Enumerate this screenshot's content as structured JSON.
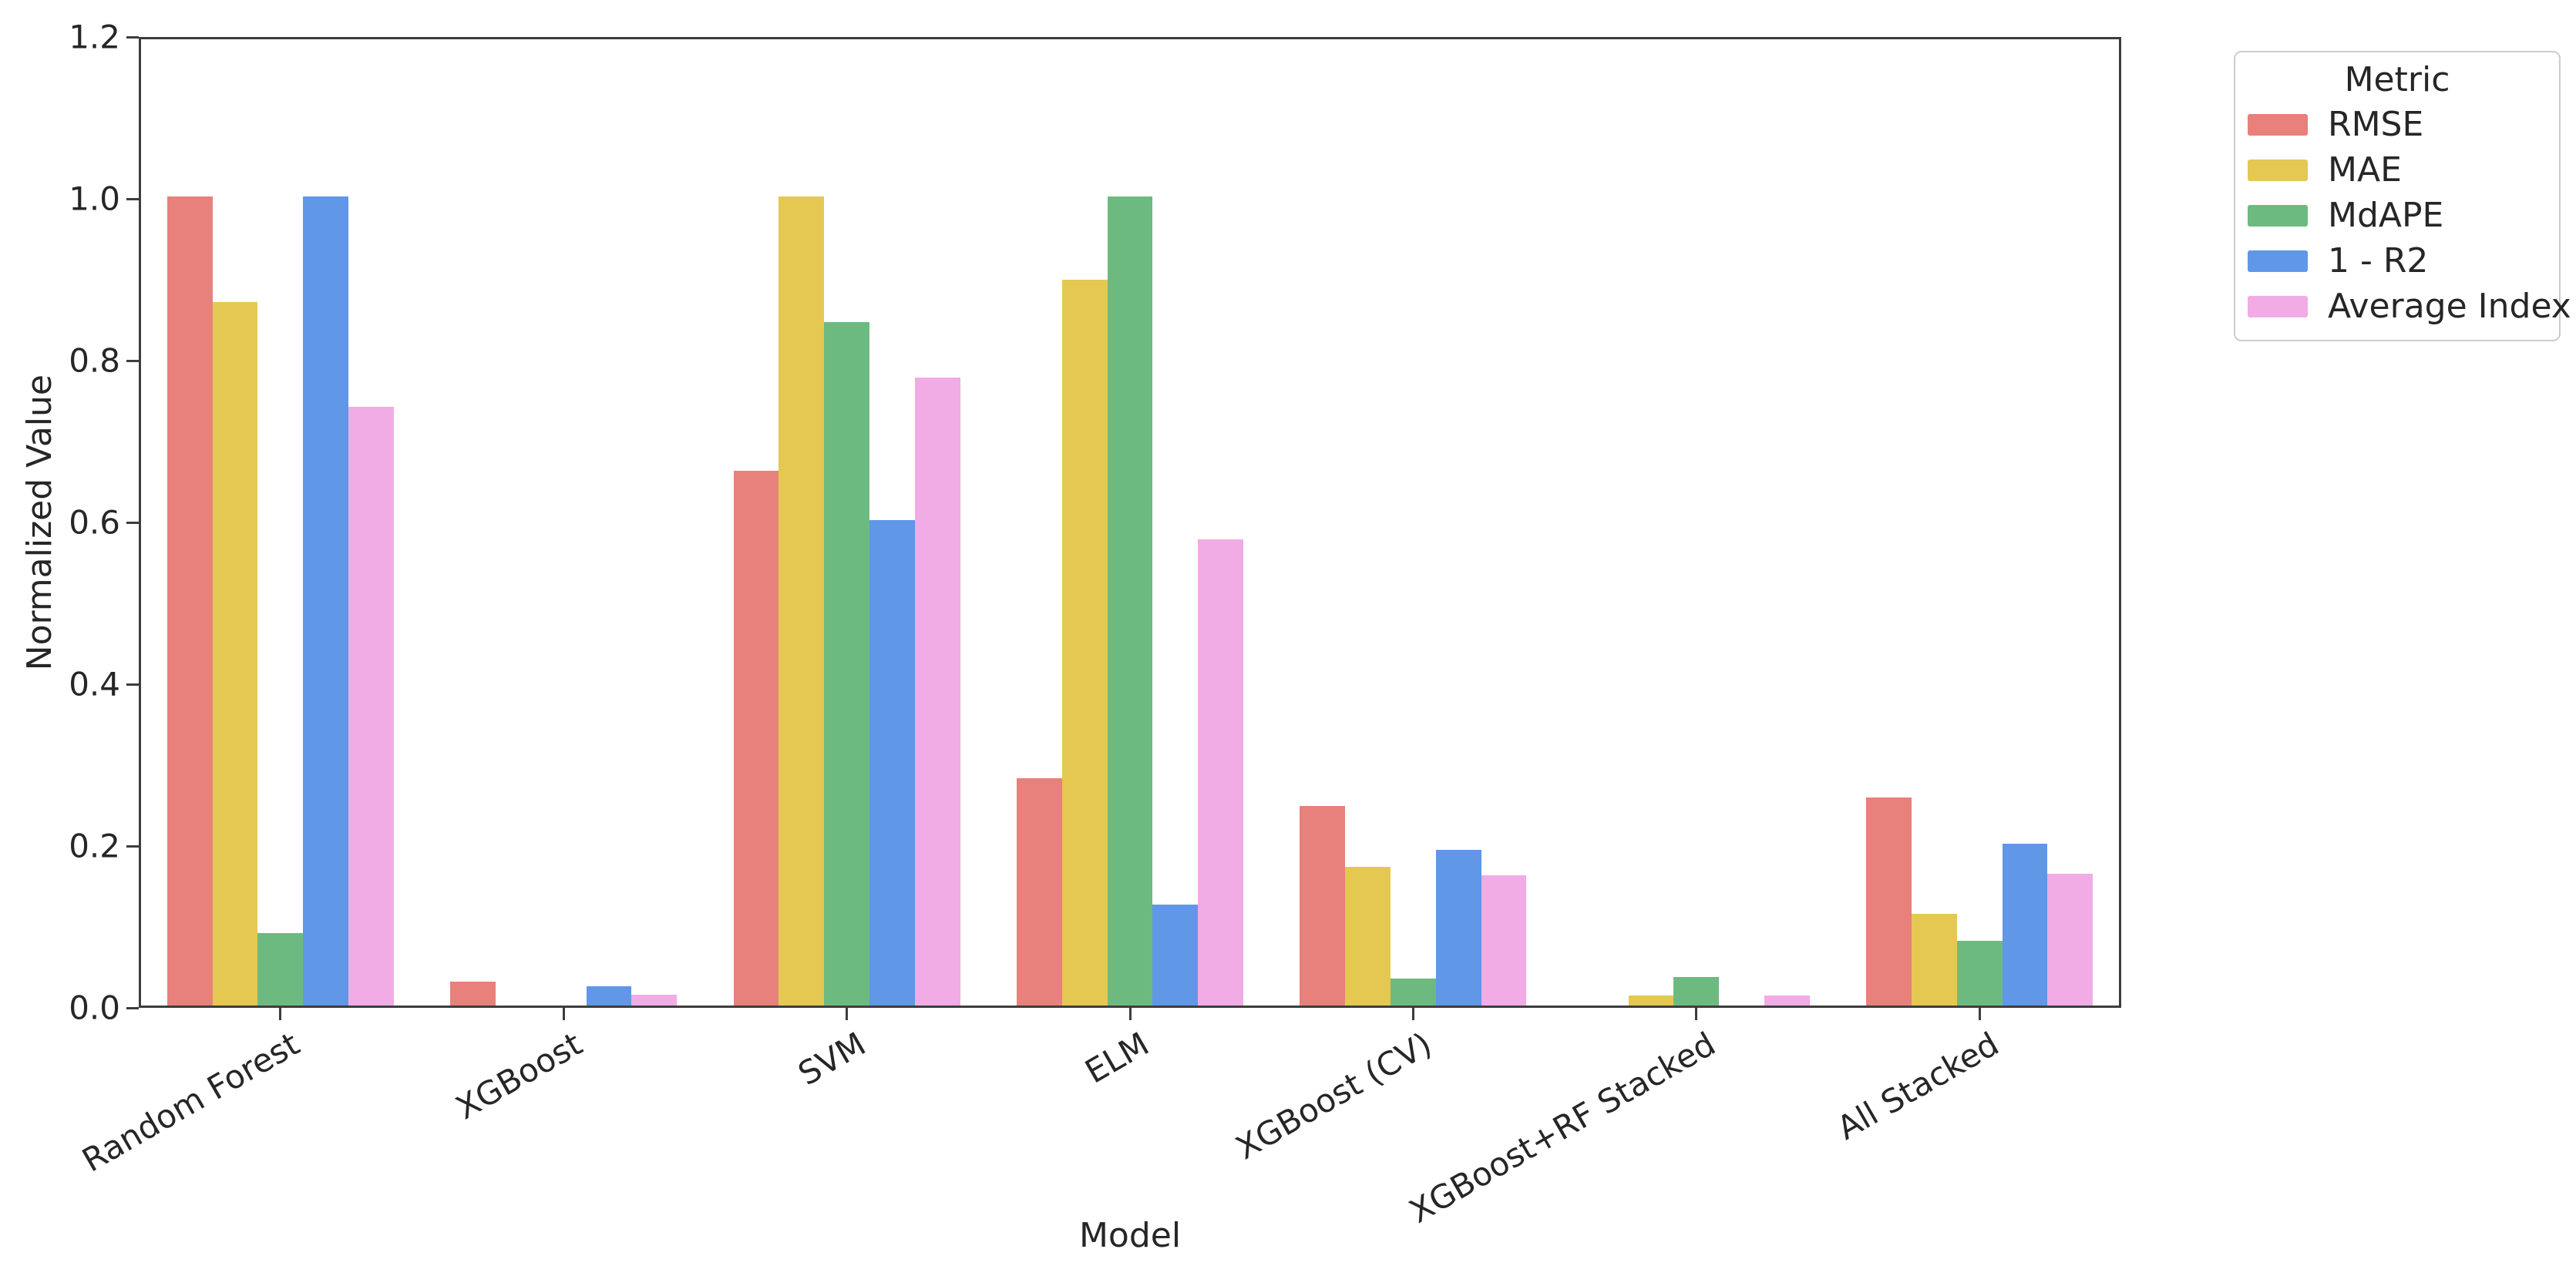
{
  "axes": {
    "xlabel": "Model",
    "ylabel": "Normalized Value"
  },
  "legend": {
    "title": "Metric"
  },
  "chart_data": {
    "type": "bar",
    "title": "",
    "xlabel": "Model",
    "ylabel": "Normalized Value",
    "ylim": [
      0,
      1.2
    ],
    "yticks": [
      0.0,
      0.2,
      0.4,
      0.6,
      0.8,
      1.0,
      1.2
    ],
    "ytick_labels": [
      "0.0",
      "0.2",
      "0.4",
      "0.6",
      "0.8",
      "1.0",
      "1.2"
    ],
    "grid": false,
    "legend_title": "Metric",
    "legend_position": "upper right outside axes",
    "categories": [
      "Random Forest",
      "XGBoost",
      "SVM",
      "ELM",
      "XGBoost (CV)",
      "XGBoost+RF Stacked",
      "All Stacked"
    ],
    "series": [
      {
        "name": "RMSE",
        "color": "#e8807b",
        "values": [
          1.0,
          0.03,
          0.661,
          0.281,
          0.247,
          0.0,
          0.257
        ]
      },
      {
        "name": "MAE",
        "color": "#e4c852",
        "values": [
          0.87,
          0.0,
          1.0,
          0.897,
          0.171,
          0.012,
          0.113
        ]
      },
      {
        "name": "MdAPE",
        "color": "#6dba80",
        "values": [
          0.09,
          0.0,
          0.845,
          1.0,
          0.033,
          0.035,
          0.08
        ]
      },
      {
        "name": "1 - R2",
        "color": "#6097e6",
        "values": [
          1.0,
          0.024,
          0.6,
          0.125,
          0.192,
          0.0,
          0.2
        ]
      },
      {
        "name": "Average Index",
        "color": "#f1abe5",
        "values": [
          0.74,
          0.013,
          0.776,
          0.576,
          0.161,
          0.012,
          0.163
        ]
      }
    ]
  }
}
